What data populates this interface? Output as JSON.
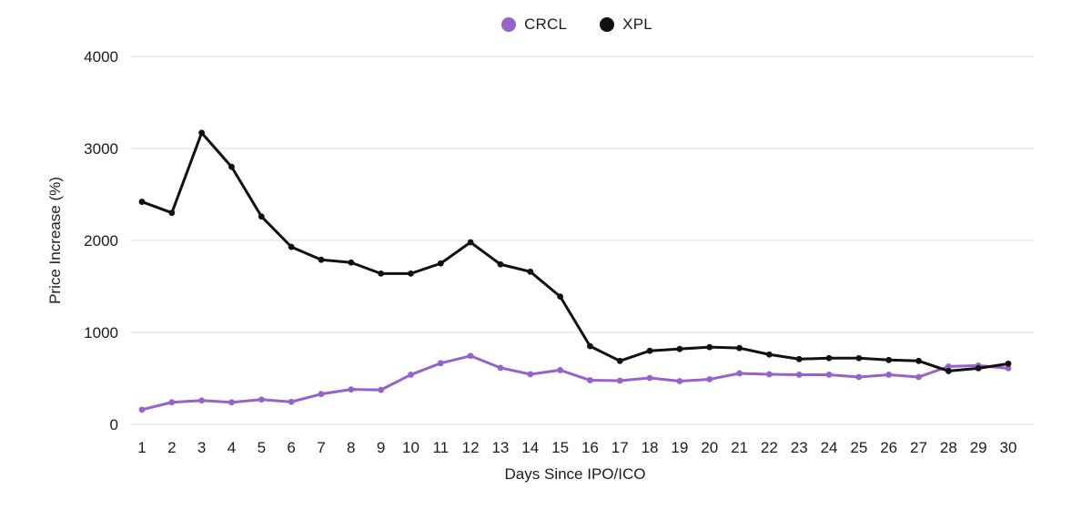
{
  "chart_data": {
    "type": "line",
    "title": "",
    "xlabel": "Days Since IPO/ICO",
    "ylabel": "Price Increase (%)",
    "x": [
      1,
      2,
      3,
      4,
      5,
      6,
      7,
      8,
      9,
      10,
      11,
      12,
      13,
      14,
      15,
      16,
      17,
      18,
      19,
      20,
      21,
      22,
      23,
      24,
      25,
      26,
      27,
      28,
      29,
      30
    ],
    "x_tick_labels": [
      "1",
      "2",
      "3",
      "4",
      "5",
      "6",
      "7",
      "8",
      "9",
      "10",
      "11",
      "12",
      "13",
      "14",
      "15",
      "16",
      "17",
      "18",
      "19",
      "20",
      "21",
      "22",
      "23",
      "24",
      "25",
      "26",
      "27",
      "28",
      "29",
      "30"
    ],
    "y_ticks": [
      0,
      1000,
      2000,
      3000,
      4000
    ],
    "y_tick_labels": [
      "0",
      "1000",
      "2000",
      "3000",
      "4000"
    ],
    "ylim": [
      0,
      4000
    ],
    "grid": "horizontal",
    "legend_position": "top-center",
    "series": [
      {
        "name": "CRCL",
        "color": "#9763cb",
        "values": [
          160,
          240,
          260,
          240,
          270,
          245,
          330,
          380,
          375,
          540,
          665,
          745,
          615,
          545,
          590,
          480,
          475,
          505,
          470,
          490,
          555,
          545,
          540,
          540,
          515,
          540,
          515,
          630,
          640,
          610
        ]
      },
      {
        "name": "XPL",
        "color": "#111111",
        "values": [
          2420,
          2300,
          3170,
          2800,
          2260,
          1930,
          1790,
          1760,
          1640,
          1640,
          1750,
          1980,
          1740,
          1660,
          1390,
          850,
          690,
          800,
          820,
          840,
          830,
          760,
          710,
          720,
          720,
          700,
          690,
          580,
          610,
          660
        ]
      }
    ]
  },
  "colors": {
    "grid": "#e7e7e7",
    "text": "#1c1c1c",
    "background": "#ffffff"
  }
}
